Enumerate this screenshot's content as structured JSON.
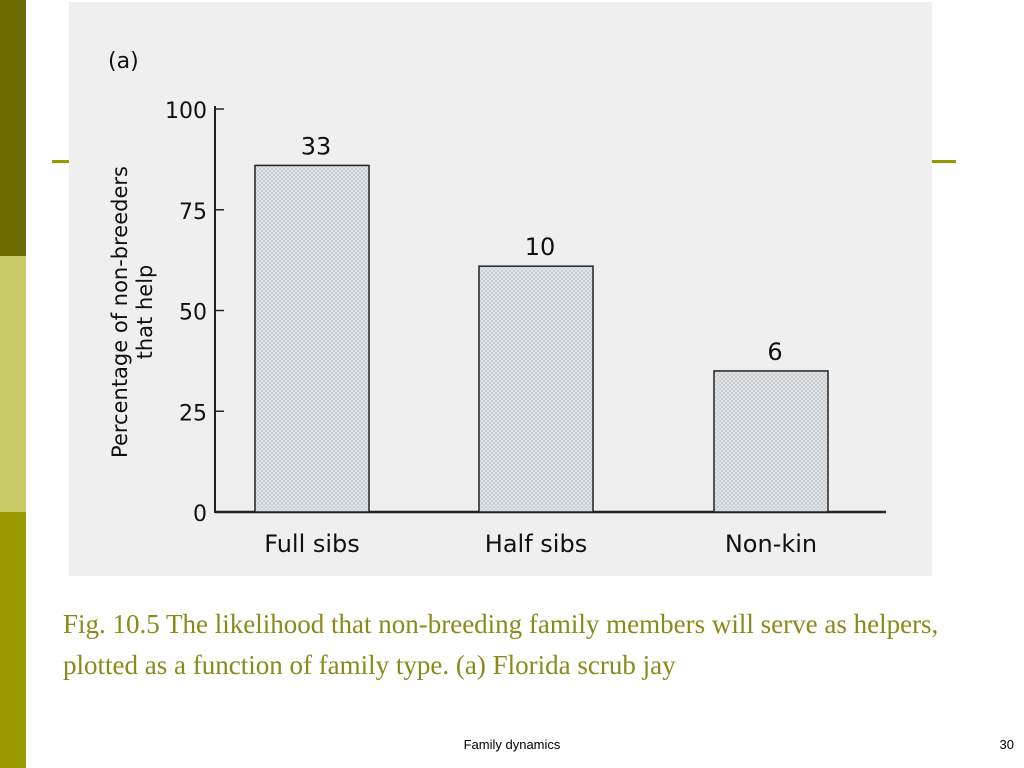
{
  "theme": {
    "sidebar_colors": [
      "#6b6b00",
      "#c8cc66",
      "#9a9a00"
    ],
    "rule_color": "#9a9a00",
    "caption_color": "#8a8a1a",
    "bar_fill": "#dfe3e6",
    "bar_stroke": "#222222"
  },
  "chart_data": {
    "type": "bar",
    "panel_label": "(a)",
    "ylabel_lines": [
      "Percentage of non-breeders",
      "that help"
    ],
    "xlabel": "",
    "ylim": [
      0,
      100
    ],
    "yticks": [
      "0",
      "25",
      "50",
      "75",
      "100"
    ],
    "categories": [
      "Full sibs",
      "Half sibs",
      "Non-kin"
    ],
    "values": [
      86,
      61,
      35
    ],
    "bar_labels": [
      "33",
      "10",
      "6"
    ],
    "grid": false
  },
  "caption": "Fig. 10.5 The likelihood that non-breeding family members will serve as helpers, plotted as a function of family type. (a) Florida scrub jay",
  "footer": {
    "title": "Family dynamics",
    "page_number": "30"
  }
}
